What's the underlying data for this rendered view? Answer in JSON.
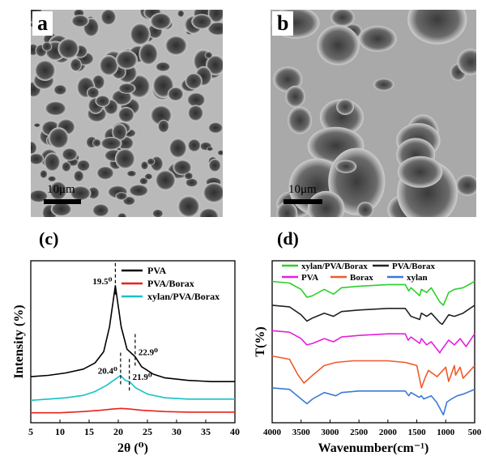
{
  "panels": {
    "a": {
      "letter": "a",
      "scale_label": "10μm"
    },
    "b": {
      "letter": "b",
      "scale_label": "10μm"
    },
    "c": {
      "letter": "(c)"
    },
    "d": {
      "letter": "(d)"
    }
  },
  "colors": {
    "PVA": "#000000",
    "PVA/Borax": "#e8221a",
    "xylan/PVA/Borax": "#14c2c6",
    "d_xylan/PVA/Borax": "#2ad12a",
    "d_PVA/Borax": "#222222",
    "d_PVA": "#e81ee0",
    "d_Borax": "#f05a2a",
    "d_xylan": "#3a7ad8"
  },
  "chart_data": [
    {
      "type": "line",
      "panel": "c",
      "xlabel": "2θ (⁰)",
      "ylabel": "Intensity (%)",
      "xlim": [
        5,
        40
      ],
      "xticks": [
        "5",
        "10",
        "15",
        "20",
        "25",
        "30",
        "35",
        "40"
      ],
      "legend": {
        "placement": "top-right",
        "entries": [
          "PVA",
          "PVA/Borax",
          "xylan/PVA/Borax"
        ]
      },
      "annotations": [
        {
          "text": "19.5⁰",
          "x": 19.5,
          "series": "PVA"
        },
        {
          "text": "22.9⁰",
          "x": 22.9,
          "series": "PVA"
        },
        {
          "text": "20.4⁰",
          "x": 20.4,
          "series": "xylan/PVA/Borax"
        },
        {
          "text": "21.9⁰",
          "x": 21.9,
          "series": "xylan/PVA/Borax"
        }
      ],
      "series": [
        {
          "name": "PVA",
          "x": [
            5,
            8,
            11,
            14,
            16,
            17.5,
            18.5,
            19.5,
            20.5,
            21.5,
            22.9,
            24,
            26,
            28,
            32,
            36,
            40
          ],
          "y": [
            0.22,
            0.23,
            0.25,
            0.28,
            0.33,
            0.42,
            0.62,
            0.95,
            0.62,
            0.44,
            0.38,
            0.3,
            0.24,
            0.21,
            0.19,
            0.18,
            0.18
          ]
        },
        {
          "name": "xylan/PVA/Borax",
          "x": [
            5,
            8,
            11,
            14,
            16,
            18,
            19.5,
            20.4,
            21.2,
            21.9,
            23,
            25,
            28,
            32,
            36,
            40
          ],
          "y": [
            0.03,
            0.04,
            0.05,
            0.07,
            0.1,
            0.15,
            0.2,
            0.23,
            0.19,
            0.18,
            0.13,
            0.08,
            0.05,
            0.04,
            0.04,
            0.04
          ]
        },
        {
          "name": "PVA/Borax",
          "x": [
            5,
            10,
            14,
            17,
            19,
            20.5,
            22,
            24,
            28,
            32,
            36,
            40
          ],
          "y": [
            -0.07,
            -0.07,
            -0.06,
            -0.05,
            -0.04,
            -0.035,
            -0.04,
            -0.05,
            -0.06,
            -0.065,
            -0.065,
            -0.065
          ]
        }
      ]
    },
    {
      "type": "line",
      "panel": "d",
      "xlabel": "Wavenumber(cm⁻¹)",
      "ylabel": "T(%)",
      "xlim": [
        4000,
        500
      ],
      "xticks": [
        "4000",
        "3500",
        "3000",
        "2500",
        "2000",
        "1500",
        "1000",
        "500"
      ],
      "legend": {
        "placement": "top",
        "entries": [
          "xylan/PVA/Borax",
          "PVA/Borax",
          "PVA",
          "Borax",
          "xylan"
        ]
      },
      "series": [
        {
          "name": "xylan/PVA/Borax",
          "x": [
            4000,
            3700,
            3500,
            3400,
            3300,
            3100,
            2940,
            2800,
            2500,
            2000,
            1700,
            1640,
            1600,
            1450,
            1420,
            1330,
            1250,
            1100,
            1040,
            950,
            850,
            700,
            500
          ],
          "y": [
            4.55,
            4.5,
            4.3,
            4.05,
            4.1,
            4.3,
            4.15,
            4.35,
            4.4,
            4.45,
            4.45,
            4.25,
            4.35,
            4.1,
            4.3,
            4.2,
            4.35,
            3.9,
            3.8,
            4.2,
            4.3,
            4.35,
            4.55
          ]
        },
        {
          "name": "PVA/Borax",
          "x": [
            4000,
            3700,
            3500,
            3400,
            3300,
            3100,
            2940,
            2800,
            2500,
            2000,
            1700,
            1600,
            1450,
            1420,
            1330,
            1250,
            1100,
            1060,
            950,
            850,
            700,
            500
          ],
          "y": [
            3.8,
            3.75,
            3.5,
            3.3,
            3.4,
            3.55,
            3.45,
            3.6,
            3.65,
            3.7,
            3.7,
            3.45,
            3.35,
            3.55,
            3.45,
            3.55,
            3.25,
            3.2,
            3.5,
            3.45,
            3.55,
            3.8
          ]
        },
        {
          "name": "PVA",
          "x": [
            4000,
            3700,
            3500,
            3400,
            3300,
            3100,
            2940,
            2800,
            2500,
            2000,
            1700,
            1650,
            1600,
            1450,
            1420,
            1330,
            1250,
            1100,
            1090,
            950,
            850,
            750,
            650,
            500
          ],
          "y": [
            3.0,
            2.95,
            2.75,
            2.55,
            2.6,
            2.75,
            2.65,
            2.8,
            2.85,
            2.9,
            2.9,
            2.7,
            2.8,
            2.6,
            2.75,
            2.55,
            2.65,
            2.3,
            2.35,
            2.7,
            2.55,
            2.75,
            2.5,
            2.9
          ]
        },
        {
          "name": "Borax",
          "x": [
            4000,
            3700,
            3550,
            3450,
            3300,
            3100,
            2900,
            2600,
            2000,
            1700,
            1500,
            1420,
            1360,
            1300,
            1150,
            1000,
            950,
            850,
            830,
            750,
            700,
            500
          ],
          "y": [
            2.2,
            2.1,
            1.6,
            1.35,
            1.6,
            1.9,
            2.0,
            2.05,
            2.05,
            2.0,
            1.9,
            1.2,
            1.5,
            1.75,
            1.55,
            1.85,
            1.4,
            1.9,
            1.6,
            1.85,
            1.5,
            1.9
          ]
        },
        {
          "name": "xylan",
          "x": [
            4000,
            3700,
            3500,
            3400,
            3300,
            3100,
            2900,
            2800,
            2500,
            2000,
            1700,
            1640,
            1600,
            1460,
            1420,
            1380,
            1250,
            1160,
            1040,
            980,
            900,
            800,
            700,
            500
          ],
          "y": [
            1.2,
            1.15,
            0.85,
            0.7,
            0.85,
            1.05,
            0.95,
            1.05,
            1.1,
            1.1,
            1.1,
            0.95,
            1.05,
            0.9,
            0.95,
            0.85,
            0.95,
            0.75,
            0.35,
            0.75,
            0.85,
            0.95,
            1.0,
            1.15
          ]
        }
      ]
    }
  ]
}
